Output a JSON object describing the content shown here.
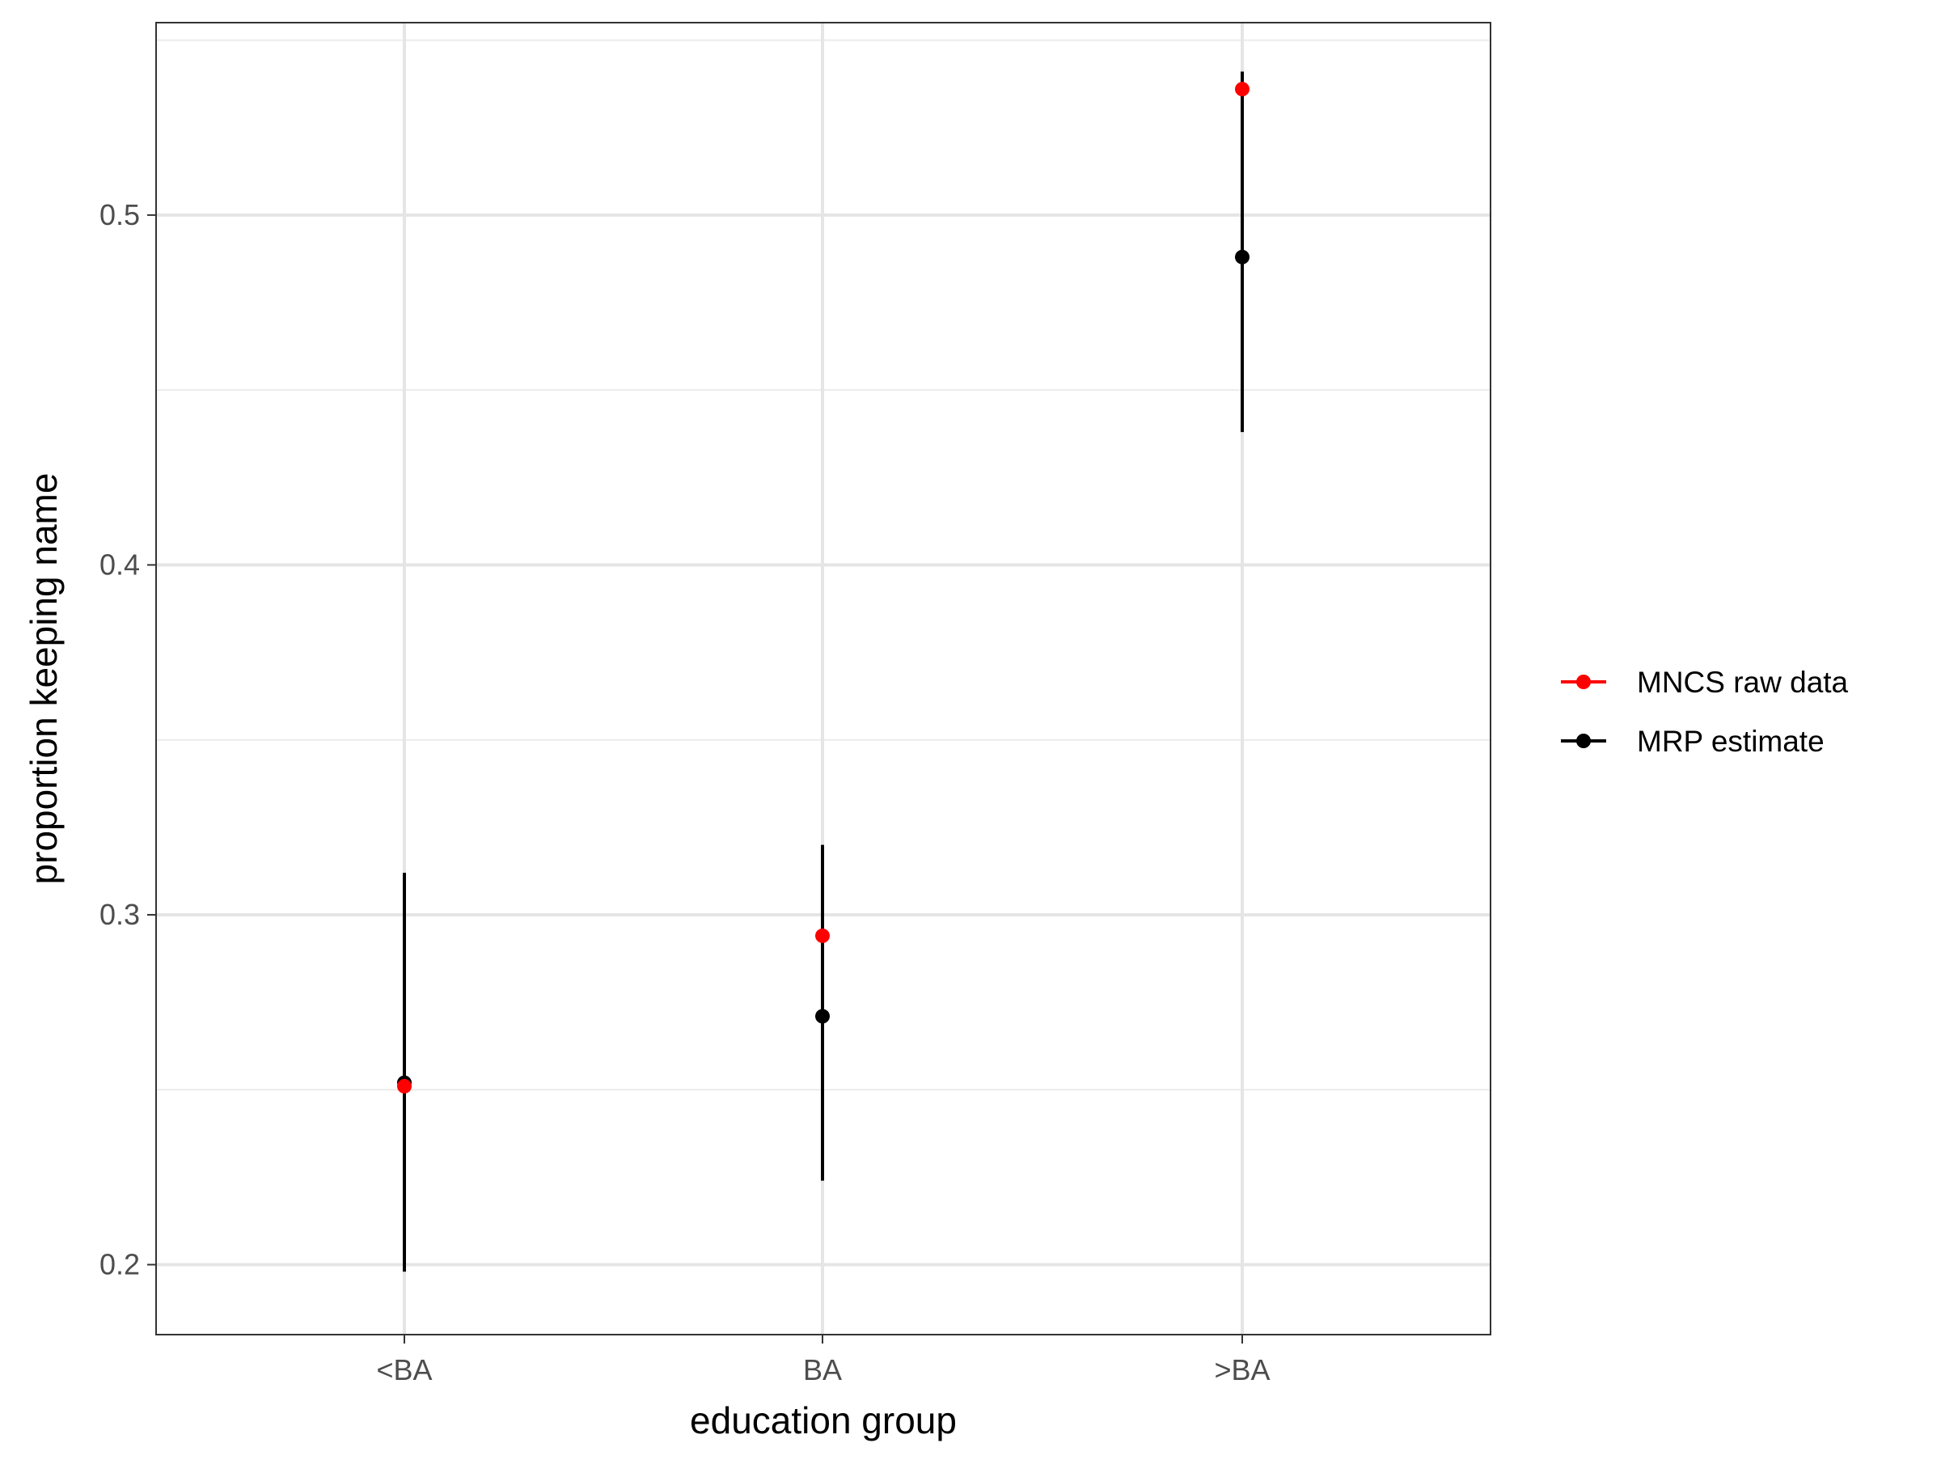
{
  "chart_data": {
    "type": "scatter",
    "subtype": "point-range",
    "title": "",
    "xlabel": "education group",
    "ylabel": "proportion keeping name",
    "categories": [
      "<BA",
      "BA",
      ">BA"
    ],
    "ylim": [
      0.18,
      0.555
    ],
    "yticks": [
      0.2,
      0.3,
      0.4,
      0.5
    ],
    "ytick_labels": [
      "0.2",
      "0.3",
      "0.4",
      "0.5"
    ],
    "grid": true,
    "legend_position": "right",
    "series": [
      {
        "name": "MRP estimate",
        "color": "#000000",
        "values": [
          0.252,
          0.271,
          0.488
        ],
        "lower": [
          0.198,
          0.224,
          0.438
        ],
        "upper": [
          0.312,
          0.32,
          0.541
        ]
      },
      {
        "name": "MNCS raw data",
        "color": "#ff0000",
        "values": [
          0.251,
          0.294,
          0.536
        ]
      }
    ],
    "legend_order": [
      "MNCS raw data",
      "MRP estimate"
    ]
  }
}
